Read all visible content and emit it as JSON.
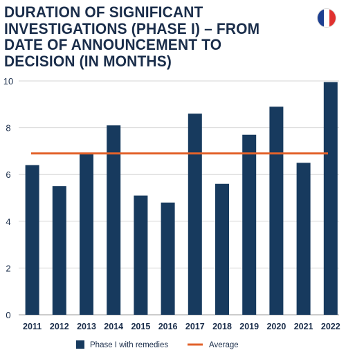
{
  "title": "DURATION OF SIGNIFICANT INVESTIGATIONS (PHASE I) – FROM DATE OF ANNOUNCEMENT TO DECISION (IN MONTHS)",
  "flag": {
    "icon": "france-flag-icon",
    "colors": [
      "#1d3f91",
      "#ffffff",
      "#e0312f"
    ]
  },
  "colors": {
    "bar": "#173a5e",
    "average": "#e2622b",
    "grid": "#d6d6d6",
    "text": "#1a2d4a"
  },
  "chart_data": {
    "type": "bar",
    "title": "DURATION OF SIGNIFICANT INVESTIGATIONS (PHASE I) – FROM DATE OF ANNOUNCEMENT TO DECISION (IN MONTHS)",
    "categories": [
      "2011",
      "2012",
      "2013",
      "2014",
      "2015",
      "2016",
      "2017",
      "2018",
      "2019",
      "2020",
      "2021",
      "2022"
    ],
    "series": [
      {
        "name": "Phase I with remedies",
        "type": "bar",
        "values": [
          6.4,
          5.5,
          6.9,
          8.1,
          5.1,
          4.8,
          8.6,
          5.6,
          7.7,
          8.9,
          6.5,
          9.95
        ]
      },
      {
        "name": "Average",
        "type": "line",
        "values": [
          6.9,
          6.9,
          6.9,
          6.9,
          6.9,
          6.9,
          6.9,
          6.9,
          6.9,
          6.9,
          6.9,
          6.9
        ]
      }
    ],
    "ylim": [
      0,
      10
    ],
    "yticks": [
      "0",
      "2",
      "4",
      "6",
      "8",
      "10"
    ],
    "xlabel": "",
    "ylabel": "",
    "grid": true,
    "legend": "bottom-center"
  }
}
